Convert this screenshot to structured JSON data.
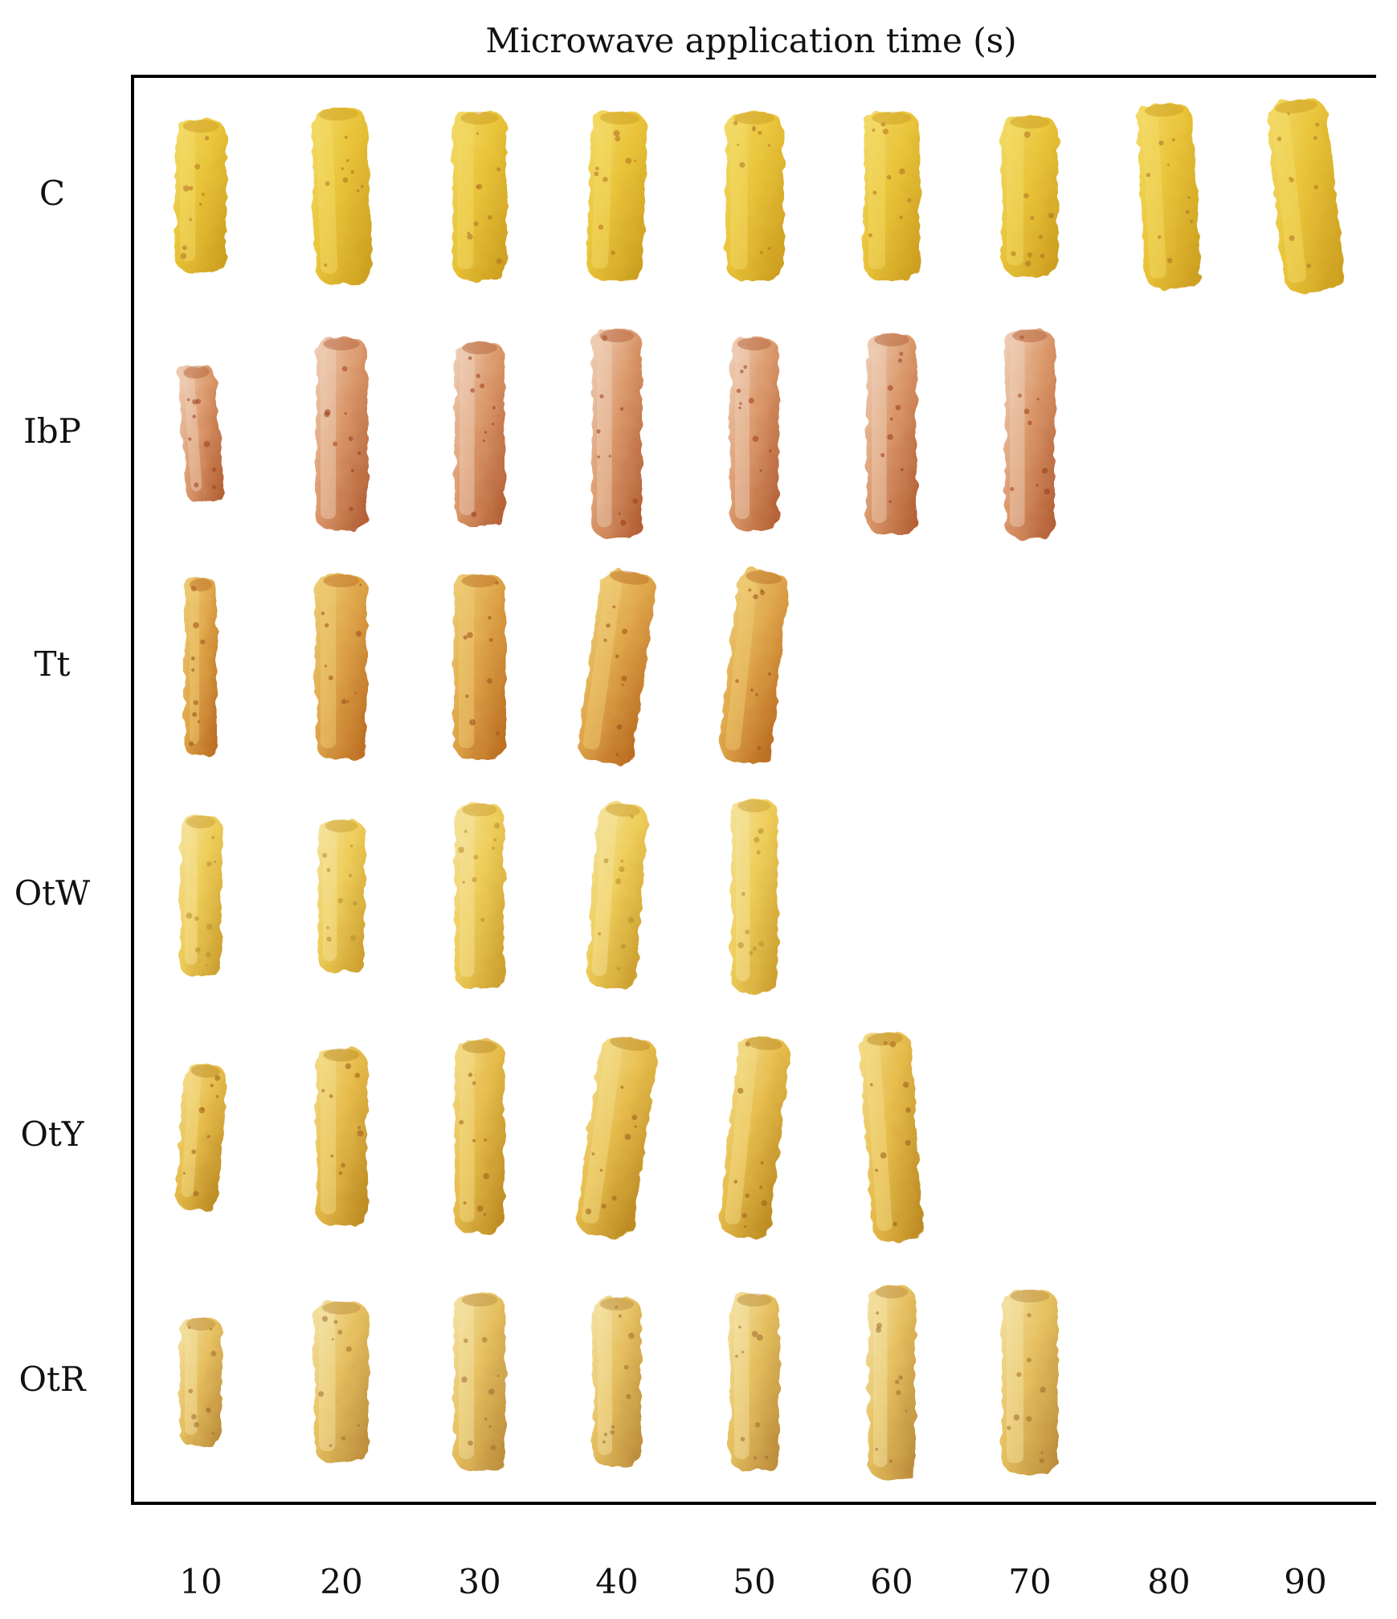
{
  "title": "Microwave application time (s)",
  "time_labels": [
    "10",
    "20",
    "30",
    "40",
    "50",
    "60",
    "70",
    "80",
    "90"
  ],
  "samples": [
    {
      "label": "C",
      "count": 9,
      "base": "#e9c43a",
      "dark": "#c99a1c",
      "light": "#f3dc6a",
      "specks": "#b07020"
    },
    {
      "label": "IbP",
      "count": 7,
      "base": "#dc9b6e",
      "dark": "#b05a30",
      "light": "#f0d2bc",
      "specks": "#9a3c18"
    },
    {
      "label": "Tt",
      "count": 5,
      "base": "#dfa64a",
      "dark": "#b8681e",
      "light": "#efcf78",
      "specks": "#9a4c18"
    },
    {
      "label": "OtW",
      "count": 5,
      "base": "#eecd5a",
      "dark": "#c89a2a",
      "light": "#f6e4a0",
      "specks": "#b48a2c"
    },
    {
      "label": "OtY",
      "count": 6,
      "base": "#e6bc4c",
      "dark": "#b8861e",
      "light": "#f4de8c",
      "specks": "#9a5c18"
    },
    {
      "label": "OtR",
      "count": 7,
      "base": "#e6c060",
      "dark": "#b88838",
      "light": "#f5e4a8",
      "specks": "#a06a30"
    }
  ]
}
